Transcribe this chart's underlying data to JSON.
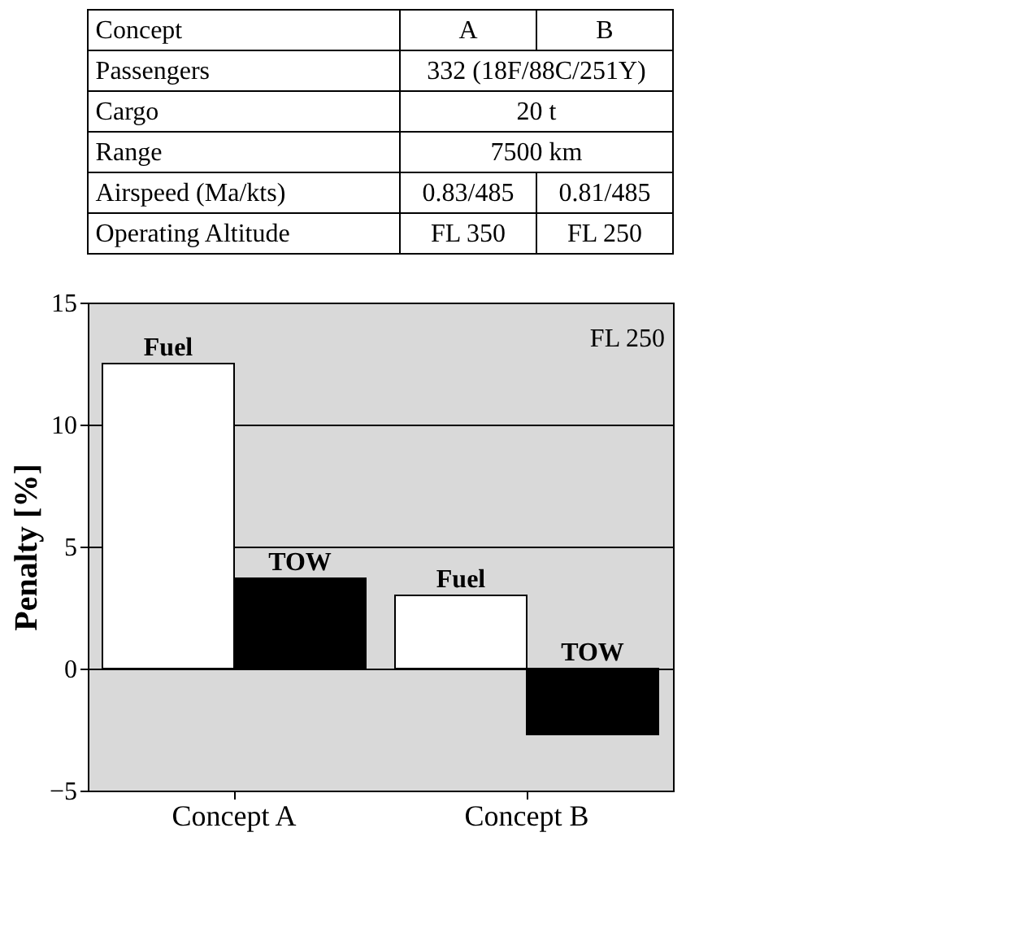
{
  "chart_data": [
    {
      "type": "other",
      "annotations": [
        "Concept",
        "A",
        "B",
        "Passengers",
        "332 (18F/88C/251Y)",
        "Cargo",
        "20 t",
        "Range",
        "7500 km",
        "Airspeed (Ma/kts)",
        "0.83/485",
        "0.81/485",
        "Operating Altitude",
        "FL 350",
        "FL 250"
      ]
    },
    {
      "type": "bar",
      "ylabel": "Penalty [%]",
      "categories": [
        "Concept A",
        "Concept B"
      ],
      "series": [
        {
          "name": "Fuel",
          "color": "#ffffff",
          "values": [
            12.5,
            3.0
          ]
        },
        {
          "name": "TOW",
          "color": "#000000",
          "values": [
            3.7,
            -2.7
          ]
        }
      ],
      "ylim": [
        -5,
        15
      ],
      "yticks": [
        -5,
        0,
        5,
        10,
        15
      ],
      "grid": "y",
      "legend": false,
      "annotations": [
        "FL 250"
      ]
    }
  ]
}
